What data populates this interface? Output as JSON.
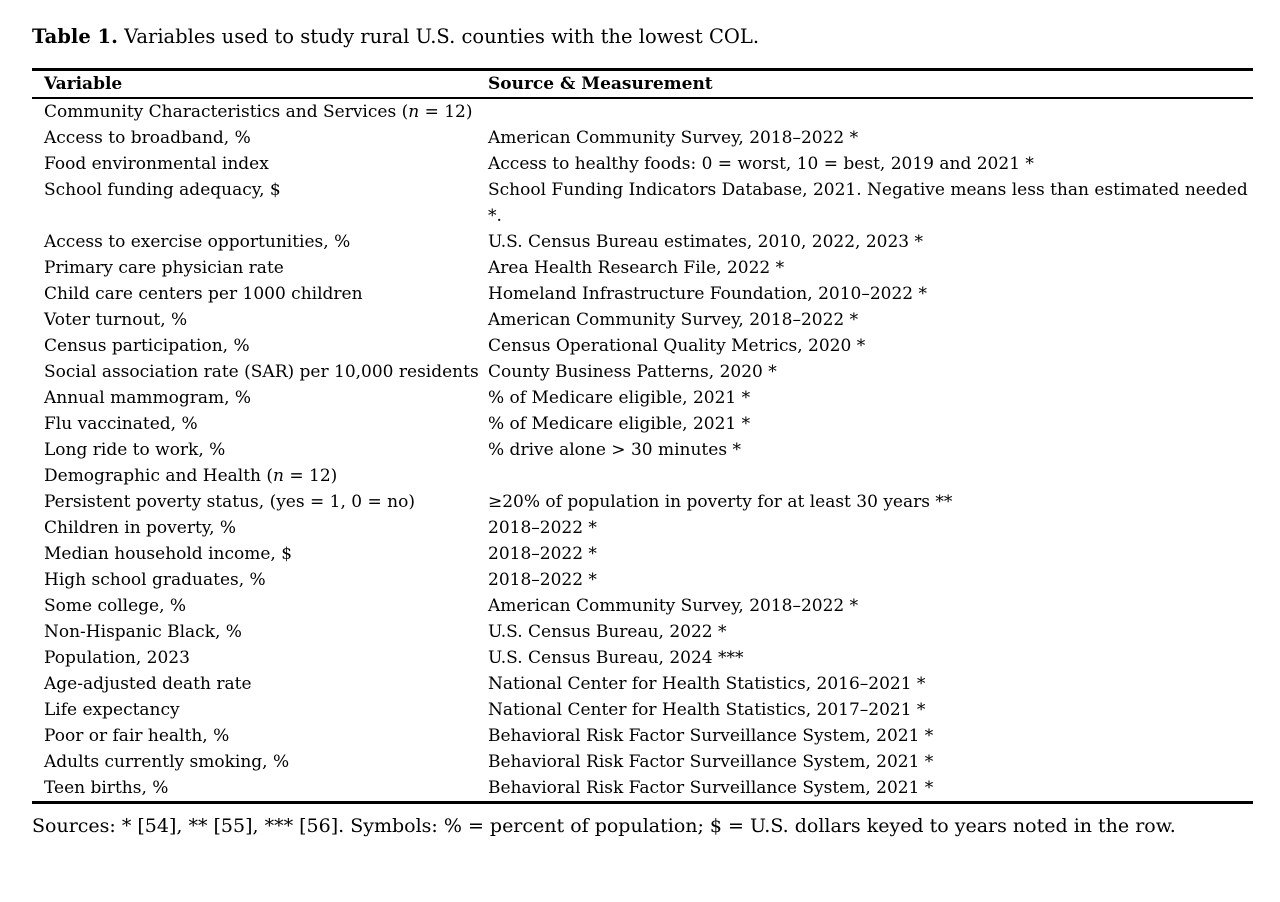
{
  "title": {
    "label": "Table 1.",
    "text": " Variables used to study rural U.S. counties with the lowest COL."
  },
  "table": {
    "headers": [
      "Variable",
      "Source & Measurement"
    ],
    "rows": [
      {
        "section": true,
        "variable": [
          {
            "text": "Community Characteristics and Services ("
          },
          {
            "text": "n",
            "italic": true
          },
          {
            "text": " = 12)"
          }
        ],
        "source": ""
      },
      {
        "variable": [
          {
            "text": "Access to broadband, %"
          }
        ],
        "source": "American Community Survey, 2018–2022 *"
      },
      {
        "variable": [
          {
            "text": "Food environmental index"
          }
        ],
        "source": "Access to healthy foods: 0 = worst, 10 = best, 2019 and 2021 *"
      },
      {
        "variable": [
          {
            "text": "School funding adequacy, $"
          }
        ],
        "source": "School Funding Indicators Database, 2021. Negative means less than estimated needed *."
      },
      {
        "variable": [
          {
            "text": "Access to exercise opportunities, %"
          }
        ],
        "source": "U.S. Census Bureau estimates, 2010, 2022, 2023 *"
      },
      {
        "variable": [
          {
            "text": "Primary care physician rate"
          }
        ],
        "source": "Area Health Research File, 2022 *"
      },
      {
        "variable": [
          {
            "text": "Child care centers per 1000 children"
          }
        ],
        "source": "Homeland Infrastructure Foundation, 2010–2022 *"
      },
      {
        "variable": [
          {
            "text": "Voter turnout, %"
          }
        ],
        "source": "American Community Survey, 2018–2022 *"
      },
      {
        "variable": [
          {
            "text": "Census participation, %"
          }
        ],
        "source": "Census Operational Quality Metrics, 2020 *"
      },
      {
        "variable": [
          {
            "text": "Social association rate (SAR) per 10,000 residents"
          }
        ],
        "source": "County Business Patterns, 2020 *"
      },
      {
        "variable": [
          {
            "text": "Annual mammogram, %"
          }
        ],
        "source": "% of Medicare eligible, 2021 *"
      },
      {
        "variable": [
          {
            "text": "Flu vaccinated, %"
          }
        ],
        "source": "% of Medicare eligible, 2021 *"
      },
      {
        "variable": [
          {
            "text": "Long ride to work, %"
          }
        ],
        "source": "% drive alone > 30 minutes *"
      },
      {
        "section": true,
        "variable": [
          {
            "text": "Demographic and Health ("
          },
          {
            "text": "n",
            "italic": true
          },
          {
            "text": " = 12)"
          }
        ],
        "source": ""
      },
      {
        "variable": [
          {
            "text": "Persistent poverty status, (yes = 1, 0 = no)"
          }
        ],
        "source": "≥20% of population in poverty for at least 30 years **"
      },
      {
        "variable": [
          {
            "text": "Children in poverty, %"
          }
        ],
        "source": "2018–2022 *"
      },
      {
        "variable": [
          {
            "text": "Median household income, $"
          }
        ],
        "source": "2018–2022 *"
      },
      {
        "variable": [
          {
            "text": "High school graduates, %"
          }
        ],
        "source": "2018–2022 *"
      },
      {
        "variable": [
          {
            "text": "Some college, %"
          }
        ],
        "source": "American Community Survey, 2018–2022 *"
      },
      {
        "variable": [
          {
            "text": "Non-Hispanic Black, %"
          }
        ],
        "source": "U.S. Census Bureau, 2022 *"
      },
      {
        "variable": [
          {
            "text": "Population, 2023"
          }
        ],
        "source": "U.S. Census Bureau, 2024 ***"
      },
      {
        "variable": [
          {
            "text": "Age-adjusted death rate"
          }
        ],
        "source": "National Center for Health Statistics, 2016–2021 *"
      },
      {
        "variable": [
          {
            "text": "Life expectancy"
          }
        ],
        "source": "National Center for Health Statistics, 2017–2021 *"
      },
      {
        "variable": [
          {
            "text": "Poor or fair health, %"
          }
        ],
        "source": "Behavioral Risk Factor Surveillance System, 2021 *"
      },
      {
        "variable": [
          {
            "text": "Adults currently smoking, %"
          }
        ],
        "source": "Behavioral Risk Factor Surveillance System, 2021 *"
      },
      {
        "variable": [
          {
            "text": "Teen births, %"
          }
        ],
        "source": "Behavioral Risk Factor Surveillance System, 2021 *"
      }
    ]
  },
  "footer": "Sources: * [54], ** [55], *** [56]. Symbols: % = percent of population; $ = U.S. dollars keyed to years noted in the row."
}
